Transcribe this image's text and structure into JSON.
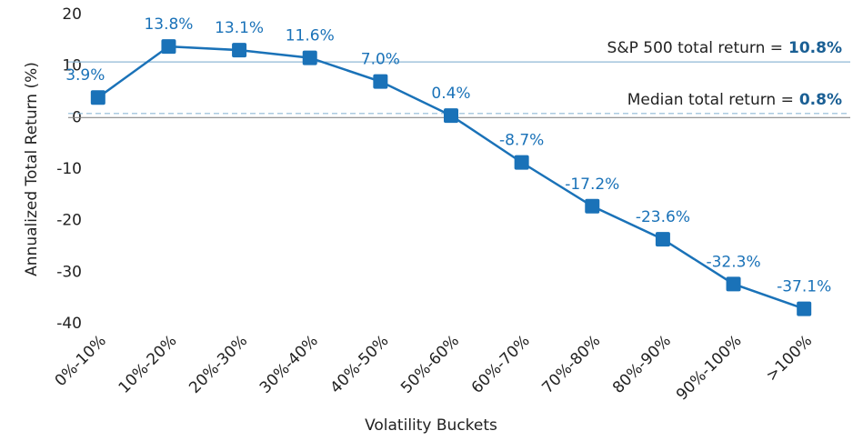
{
  "chart_data": {
    "type": "line",
    "x_label": "Volatility Buckets",
    "y_label": "Annualized Total Return (%)",
    "categories": [
      "0%-10%",
      "10%-20%",
      "20%-30%",
      "30%-40%",
      "40%-50%",
      "50%-60%",
      "60%-70%",
      "70%-80%",
      "80%-90%",
      "90%-100%",
      ">100%"
    ],
    "series": [
      {
        "name": "Annualized Total Return",
        "color": "#1a72b8",
        "values": [
          3.9,
          13.8,
          13.1,
          11.6,
          7.0,
          0.4,
          -8.7,
          -17.2,
          -23.6,
          -32.3,
          -37.1
        ],
        "value_labels": [
          "3.9%",
          "13.8%",
          "13.1%",
          "11.6%",
          "7.0%",
          "0.4%",
          "-8.7%",
          "-17.2%",
          "-23.6%",
          "-32.3%",
          "-37.1%"
        ]
      }
    ],
    "reference_lines": [
      {
        "label": "S&P 500 total return =",
        "value": 10.8,
        "value_label": "10.8%",
        "style": "solid",
        "color": "#8fb9d6"
      },
      {
        "label": "Median total return =",
        "value": 0.8,
        "value_label": "0.8%",
        "style": "dashed",
        "color": "#8fb9d6"
      }
    ],
    "ylim": [
      -40,
      20
    ],
    "yticks": [
      -40,
      -30,
      -20,
      -10,
      0,
      10,
      20
    ],
    "grid": false
  }
}
